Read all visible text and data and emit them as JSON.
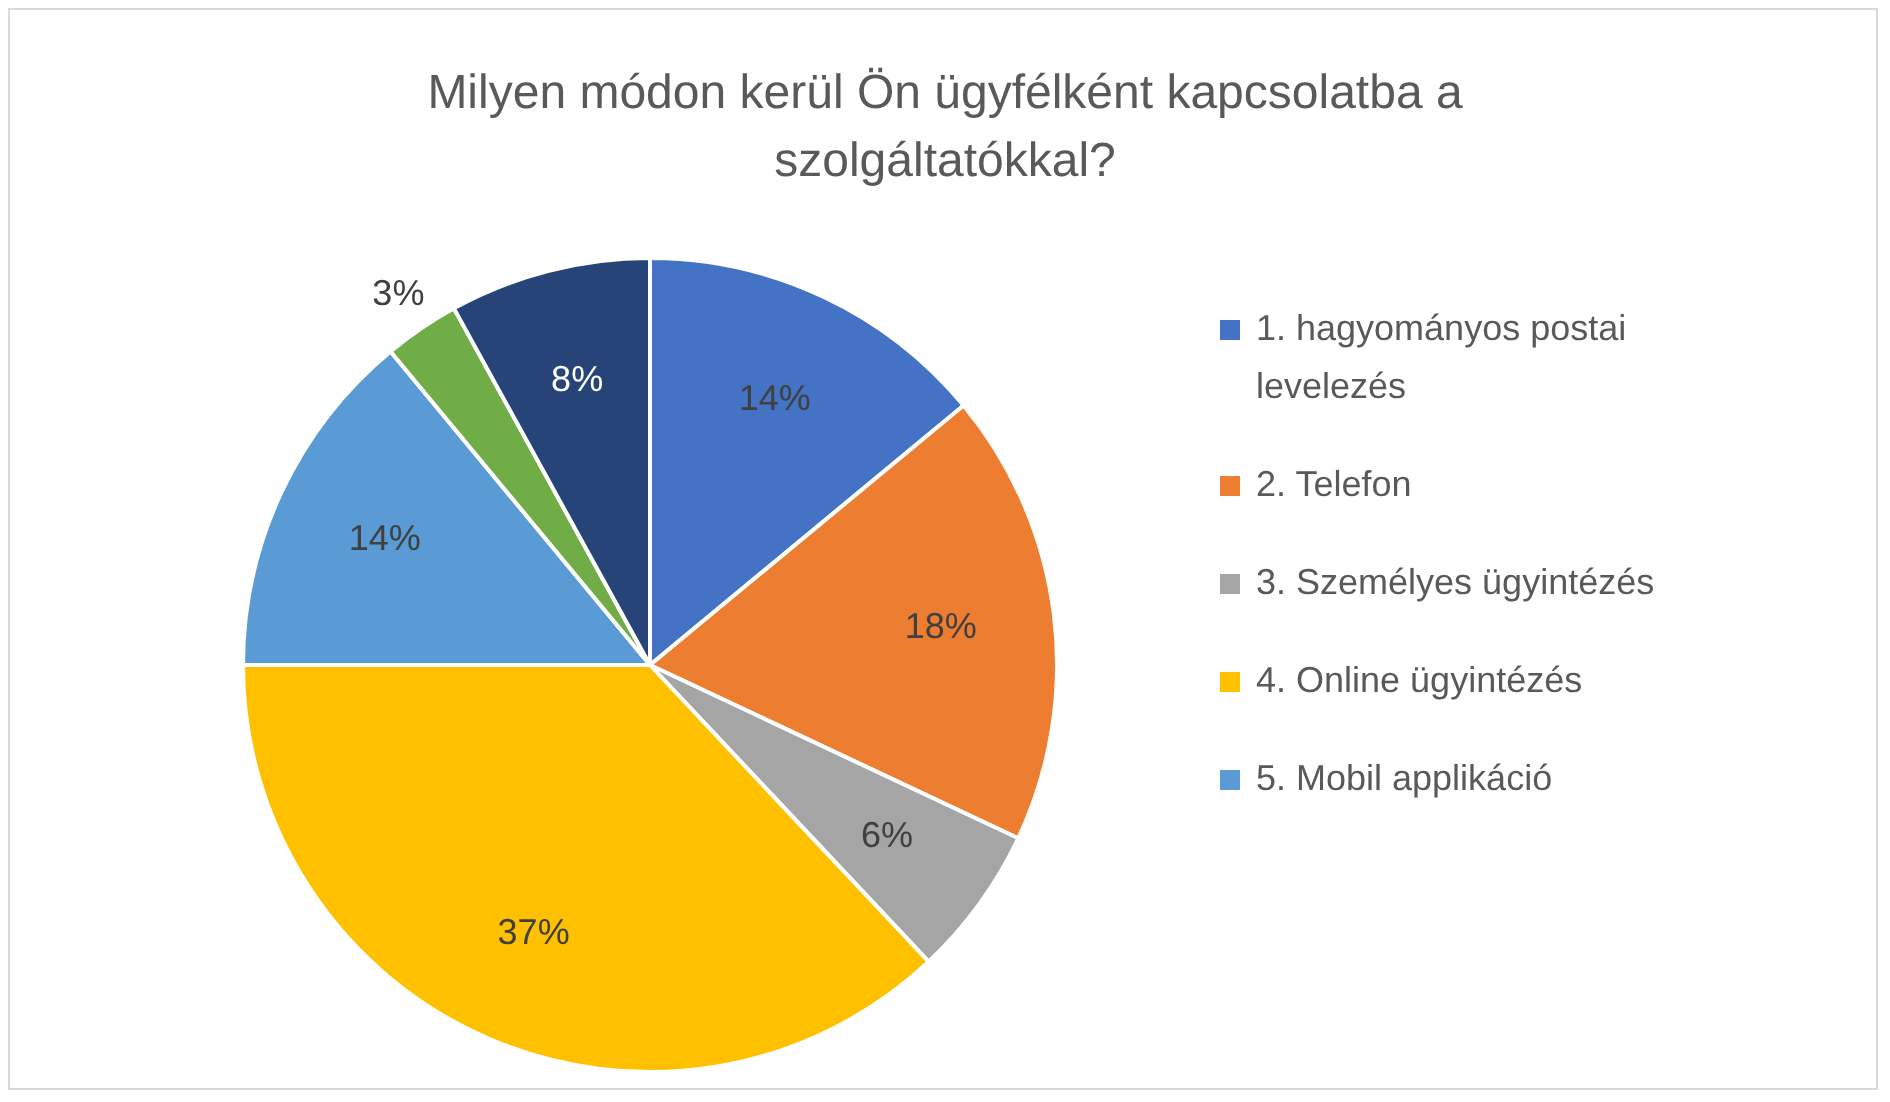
{
  "chart_data": {
    "type": "pie",
    "title": "Milyen módon kerül Ön ügyfélként kapcsolatba a szolgáltatókkal?",
    "categories": [
      "1. hagyományos postai levelezés",
      "2. Telefon",
      "3. Személyes ügyintézés",
      "4. Online ügyintézés",
      "5. Mobil applikáció",
      null,
      null
    ],
    "values": [
      14,
      18,
      6,
      37,
      14,
      3,
      8
    ],
    "colors": [
      "#4472c4",
      "#ed7d31",
      "#a5a5a5",
      "#ffc000",
      "#5b9bd5",
      "#70ad47",
      "#264478"
    ],
    "value_labels": [
      "14%",
      "18%",
      "6%",
      "37%",
      "14%",
      "3%",
      "8%"
    ],
    "legend": "right"
  }
}
